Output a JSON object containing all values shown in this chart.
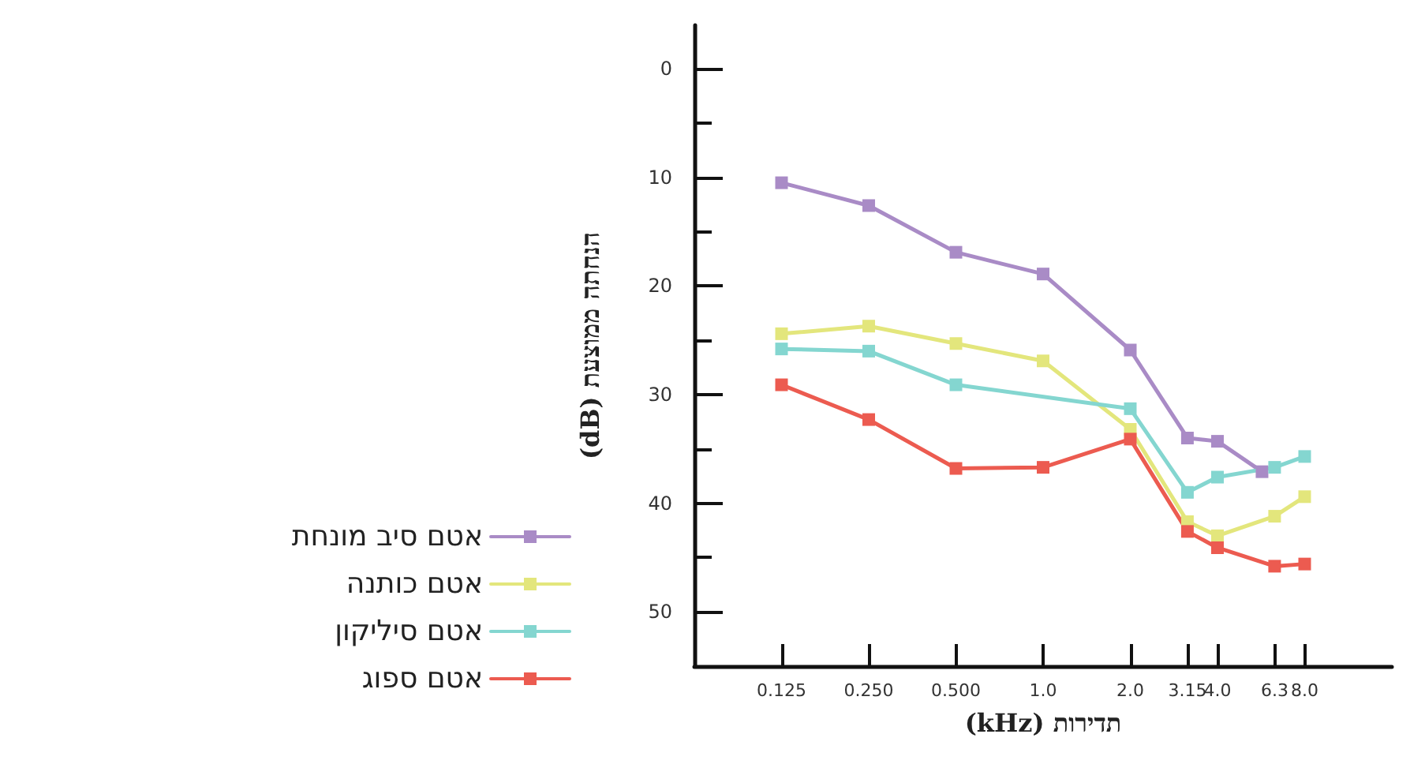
{
  "chart_data": {
    "type": "line",
    "xlabel": "(kHz) תדירות",
    "ylabel": "(dB) הנחתה ממוצעת",
    "log": "x",
    "x": [
      0.125,
      0.25,
      0.5,
      1,
      2,
      3.15,
      4,
      6.3,
      8
    ],
    "series": [
      {
        "name": "אטם סיב מונחת",
        "color": "#a98bc6",
        "x": [
          0.125,
          0.25,
          0.5,
          1,
          2,
          3.15,
          4,
          5.7
        ],
        "values": [
          10.5,
          12.6,
          16.9,
          18.9,
          25.9,
          34.0,
          34.3,
          37.1
        ]
      },
      {
        "name": "אטם כותנה",
        "color": "#e3e67c",
        "values": [
          24.4,
          23.7,
          25.3,
          26.9,
          33.2,
          41.7,
          43.0,
          41.2,
          39.4
        ]
      },
      {
        "name": "אטם סיליקון",
        "color": "#84d6d0",
        "x": [
          0.125,
          0.25,
          0.5,
          2,
          3.15,
          4,
          6.3,
          8
        ],
        "values": [
          25.8,
          26.0,
          29.1,
          31.3,
          39.0,
          37.6,
          36.7,
          35.7
        ]
      },
      {
        "name": "אטם ספוג",
        "color": "#ec5b50",
        "values": [
          29.1,
          32.3,
          36.8,
          36.7,
          34.1,
          42.6,
          44.1,
          45.8,
          45.6
        ]
      }
    ],
    "xlim": [
      0.0625,
      16
    ],
    "xticks": [
      {
        "value": 0.125,
        "label": "0.125"
      },
      {
        "value": 0.25,
        "label": "0.250"
      },
      {
        "value": 0.5,
        "label": "0.500"
      },
      {
        "value": 1,
        "label": "1.0"
      },
      {
        "value": 2,
        "label": "2.0"
      },
      {
        "value": 3.15,
        "label": "3.15"
      },
      {
        "value": 4,
        "label": "4.0"
      },
      {
        "value": 6.3,
        "label": "6.3"
      },
      {
        "value": 8,
        "label": "8.0"
      }
    ],
    "ylim": [
      55,
      -4
    ],
    "yticks": [
      0,
      {
        "value": 5,
        "label": null
      },
      10,
      {
        "value": 15,
        "label": null
      },
      20,
      {
        "value": 25,
        "label": null
      },
      30,
      {
        "value": 35,
        "label": null
      },
      40,
      {
        "value": 45,
        "label": null
      },
      50
    ],
    "legend": "left",
    "marker": "square",
    "line_style": "solid",
    "grid": false
  }
}
